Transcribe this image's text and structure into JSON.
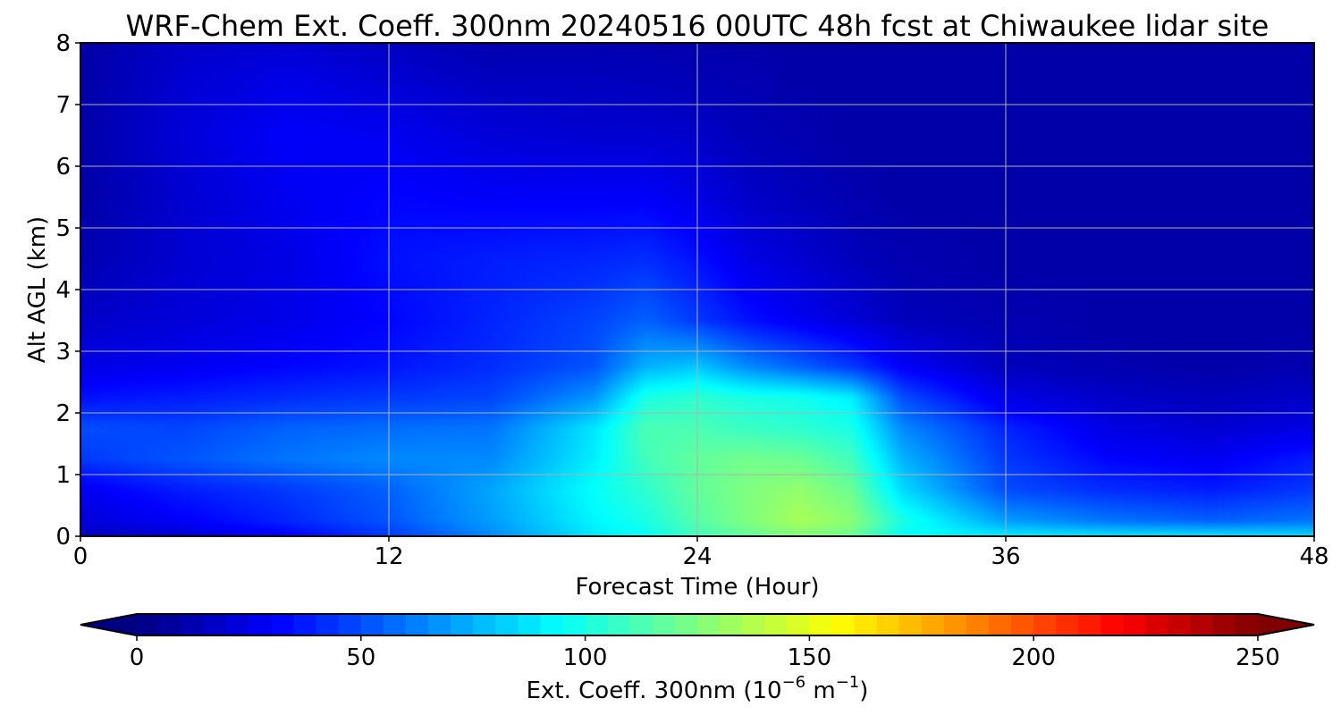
{
  "chart_data": {
    "type": "heatmap",
    "title": "WRF-Chem Ext. Coeff. 300nm  20240516 00UTC 48h fcst at Chiwaukee lidar site",
    "xlabel": "Forecast Time (Hour)",
    "ylabel": "Alt AGL (km)",
    "xlim": [
      0,
      48
    ],
    "ylim": [
      0,
      8
    ],
    "xticks": [
      0,
      12,
      24,
      36,
      48
    ],
    "yticks": [
      0,
      1,
      2,
      3,
      4,
      5,
      6,
      7,
      8
    ],
    "grid": true,
    "colormap": "jet",
    "colorbar": {
      "orientation": "horizontal",
      "placement": "bottom",
      "label_main": "Ext. Coeff. 300nm  (10",
      "label_exp1": "−6",
      "label_mid": " m",
      "label_exp2": "−1",
      "label_close": ")",
      "vmin": 0,
      "vmax": 250,
      "ticks": [
        0,
        50,
        100,
        150,
        200,
        250
      ],
      "extend": "both"
    },
    "x": [
      0,
      4,
      8,
      12,
      16,
      20,
      22,
      24,
      26,
      28,
      30,
      32,
      36,
      40,
      44,
      48
    ],
    "y": [
      0,
      0.25,
      0.75,
      1.25,
      1.75,
      2.25,
      2.75,
      3.5,
      4.5,
      5.5,
      6.5,
      7.5,
      8
    ],
    "z": [
      [
        15,
        20,
        30,
        45,
        65,
        88,
        95,
        110,
        118,
        125,
        120,
        95,
        90,
        88,
        88,
        85
      ],
      [
        22,
        30,
        40,
        52,
        70,
        92,
        100,
        115,
        125,
        135,
        128,
        100,
        70,
        60,
        55,
        60
      ],
      [
        28,
        38,
        45,
        55,
        72,
        95,
        105,
        118,
        125,
        130,
        120,
        85,
        50,
        42,
        38,
        45
      ],
      [
        45,
        52,
        60,
        65,
        65,
        90,
        110,
        118,
        122,
        120,
        110,
        75,
        45,
        32,
        28,
        38
      ],
      [
        50,
        48,
        55,
        58,
        60,
        88,
        112,
        112,
        108,
        105,
        100,
        65,
        40,
        25,
        20,
        25
      ],
      [
        35,
        38,
        42,
        45,
        48,
        68,
        100,
        105,
        100,
        98,
        90,
        50,
        25,
        18,
        15,
        18
      ],
      [
        25,
        28,
        32,
        36,
        42,
        52,
        75,
        80,
        65,
        55,
        45,
        30,
        15,
        12,
        10,
        12
      ],
      [
        18,
        22,
        26,
        32,
        40,
        48,
        55,
        45,
        35,
        28,
        22,
        15,
        12,
        10,
        10,
        10
      ],
      [
        12,
        20,
        25,
        35,
        38,
        40,
        42,
        35,
        25,
        20,
        15,
        12,
        10,
        10,
        10,
        10
      ],
      [
        10,
        20,
        28,
        32,
        30,
        30,
        30,
        25,
        18,
        15,
        12,
        10,
        10,
        10,
        10,
        10
      ],
      [
        10,
        22,
        30,
        28,
        22,
        20,
        20,
        18,
        14,
        12,
        10,
        10,
        10,
        10,
        10,
        10
      ],
      [
        10,
        20,
        25,
        20,
        15,
        15,
        14,
        13,
        12,
        10,
        10,
        10,
        10,
        10,
        10,
        10
      ],
      [
        10,
        18,
        20,
        16,
        12,
        12,
        12,
        11,
        10,
        10,
        10,
        10,
        10,
        10,
        10,
        10
      ]
    ]
  }
}
